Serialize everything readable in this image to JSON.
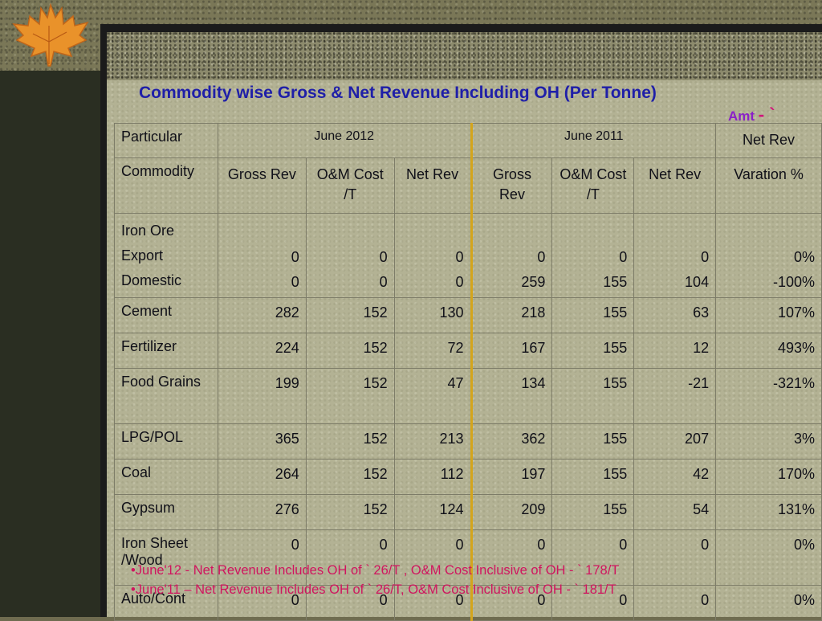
{
  "title": "Commodity wise Gross & Net Revenue Including OH (Per Tonne)",
  "amount_label": "Amt",
  "currency_symbol": "- `",
  "table": {
    "col_particular": "Particular",
    "period_1": "June 2012",
    "period_2": "June 2011",
    "col_net_rev_header": "Net Rev",
    "col_commodity": "Commodity",
    "sub_headers": {
      "gross_rev": "Gross Rev",
      "om_cost": "O&M Cost /T",
      "net_rev": "Net Rev",
      "gross_rev_2011": "Gross Rev",
      "om_cost_2011": "O&M Cost /T",
      "net_rev_2011": "Net Rev",
      "variation": "Varation %"
    },
    "iron_ore": {
      "label": "Iron Ore",
      "export": {
        "label": "Export",
        "g12": "0",
        "om12": "0",
        "n12": "0",
        "g11": "0",
        "om11": "0",
        "n11": "0",
        "var": "0%"
      },
      "domestic": {
        "label": "Domestic",
        "g12": "0",
        "om12": "0",
        "n12": "0",
        "g11": "259",
        "om11": "155",
        "n11": "104",
        "var": "-100%"
      }
    },
    "rows": [
      {
        "commodity": "Cement",
        "g12": "282",
        "om12": "152",
        "n12": "130",
        "g11": "218",
        "om11": "155",
        "n11": "63",
        "var": "107%"
      },
      {
        "commodity": "Fertilizer",
        "g12": "224",
        "om12": "152",
        "n12": "72",
        "g11": "167",
        "om11": "155",
        "n11": "12",
        "var": "493%"
      },
      {
        "commodity": "Food Grains",
        "g12": "199",
        "om12": "152",
        "n12": "47",
        "g11": "134",
        "om11": "155",
        "n11": "-21",
        "var": "-321%"
      },
      {
        "commodity": "LPG/POL",
        "g12": "365",
        "om12": "152",
        "n12": "213",
        "g11": "362",
        "om11": "155",
        "n11": "207",
        "var": "3%"
      },
      {
        "commodity": "Coal",
        "g12": "264",
        "om12": "152",
        "n12": "112",
        "g11": "197",
        "om11": "155",
        "n11": "42",
        "var": "170%"
      },
      {
        "commodity": "Gypsum",
        "g12": "276",
        "om12": "152",
        "n12": "124",
        "g11": "209",
        "om11": "155",
        "n11": "54",
        "var": "131%"
      },
      {
        "commodity": "Iron Sheet /Wood",
        "g12": "0",
        "om12": "0",
        "n12": "0",
        "g11": "0",
        "om11": "0",
        "n11": "0",
        "var": "0%"
      },
      {
        "commodity": "Auto/Cont",
        "g12": "0",
        "om12": "0",
        "n12": "0",
        "g11": "0",
        "om11": "0",
        "n11": "0",
        "var": "0%"
      }
    ]
  },
  "notes": [
    "•June'12 - Net Revenue Includes OH of  ` 26/T , O&M Cost Inclusive of OH  - ` 178/T",
    "•June'11 – Net Revenue Includes OH of  ` 26/T, O&M Cost Inclusive of OH  - ` 181/T"
  ],
  "colors": {
    "title": "#1f1fa8",
    "amt": "#8a20c8",
    "notes": "#d0155f",
    "period_divider": "#d4a51c",
    "slide_bg": "#b3b294"
  },
  "icons": [
    "maple-leaf-icon"
  ]
}
